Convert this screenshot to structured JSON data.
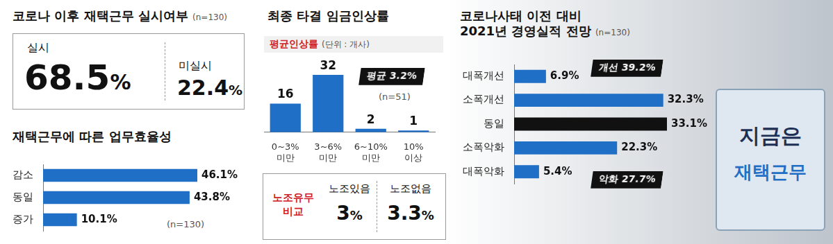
{
  "remote_work": {
    "title": "코로나 이후 재택근무 실시여부",
    "note": "(n=130)",
    "items": [
      {
        "label": "실시",
        "value": "68.5%"
      },
      {
        "label": "미실시",
        "value": "22.4%"
      }
    ]
  },
  "union_comparison": {
    "title": "노조유무\n비교",
    "items": [
      {
        "label": "노조있음",
        "value": "3%"
      },
      {
        "label": "노조없음",
        "value": "3.3%"
      }
    ]
  },
  "background_sign": "지금은\n재택근무",
  "chart_data": [
    {
      "type": "bar",
      "orientation": "horizontal",
      "title": "재택근무에 따른 업무효율성",
      "note": "(n=130)",
      "categories": [
        "감소",
        "동일",
        "증가"
      ],
      "values": [
        46.1,
        43.8,
        10.1
      ],
      "value_labels": [
        "46.1%",
        "43.8%",
        "10.1%"
      ],
      "color": "#1f6fc6",
      "xlim": [
        0,
        46.1
      ],
      "grid": false,
      "data_labels": true,
      "tick_labels": "y"
    },
    {
      "type": "bar",
      "title": "최종 타결 임금인상률",
      "subtitle": "평균인상률",
      "unit": "(단위 : 개사)",
      "note": "(n=51)",
      "annotations": [
        "평균 3.2%"
      ],
      "categories": [
        "0~3%\n미만",
        "3~6%\n미만",
        "6~10%\n미만",
        "10%\n이상"
      ],
      "values": [
        16,
        32,
        2,
        1
      ],
      "color": "#1f6fc6",
      "ylim": [
        0,
        32
      ],
      "grid": false,
      "data_labels": true,
      "tick_labels": "x"
    },
    {
      "type": "bar",
      "orientation": "horizontal",
      "title": "코로나사태 이전 대비\n2021년 경영실적 전망",
      "note": "(n=130)",
      "annotations": [
        "개선 39.2%",
        "악화 27.7%"
      ],
      "categories": [
        "대폭개선",
        "소폭개선",
        "동일",
        "소폭악화",
        "대폭악화"
      ],
      "values": [
        6.9,
        32.3,
        33.1,
        22.3,
        5.4
      ],
      "value_labels": [
        "6.9%",
        "32.3%",
        "33.1%",
        "22.3%",
        "5.4%"
      ],
      "colors": [
        "#1f6fc6",
        "#1f6fc6",
        "#111111",
        "#1f6fc6",
        "#1f6fc6"
      ],
      "xlim": [
        0,
        33.1
      ],
      "grid": false,
      "data_labels": true,
      "tick_labels": "y"
    }
  ]
}
